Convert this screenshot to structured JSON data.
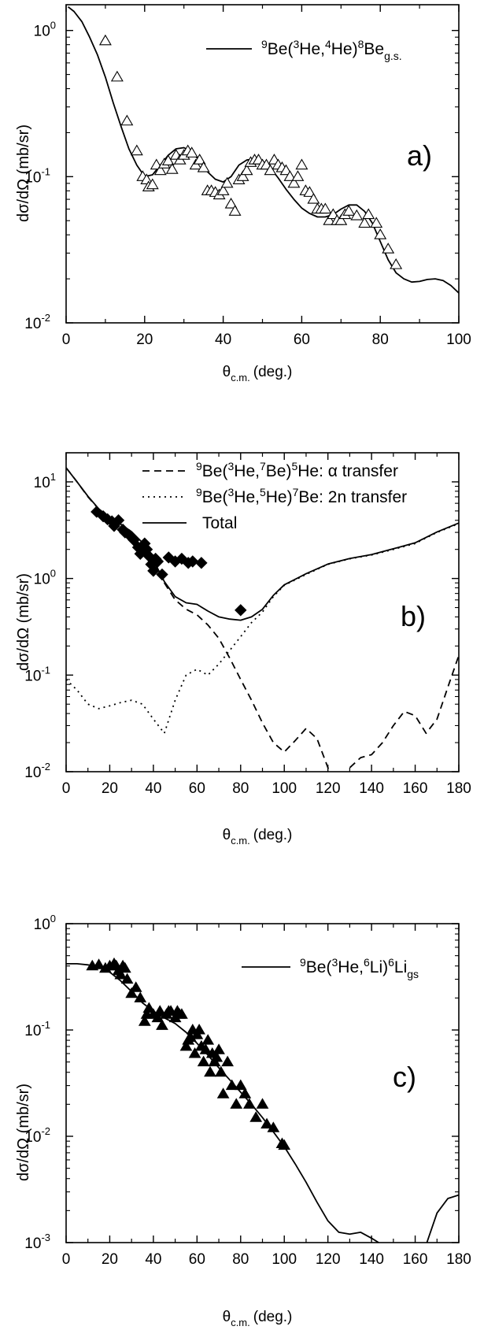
{
  "figure": {
    "ylabel_a": "dσ/dΩ (mb/sr)",
    "ylabel_b": "dσ/dΩ (mb/sr)",
    "ylabel_c": "dσ/dΩ (mb/sr)",
    "xlabel_theta": "θ",
    "xlabel_sub": "c.m.",
    "xlabel_unit": "(deg.)"
  },
  "chart_data": [
    {
      "panel": "a)",
      "type": "scatter",
      "xlim": [
        0,
        100
      ],
      "ylim": [
        0.01,
        1.5
      ],
      "yscale": "log",
      "xticks": [
        "0",
        "20",
        "40",
        "60",
        "80",
        "100"
      ],
      "yticks": [
        {
          "base": "10",
          "exp": "-2"
        },
        {
          "base": "10",
          "exp": "-1"
        },
        {
          "base": "10",
          "exp": "0"
        }
      ],
      "legend": [
        {
          "style": "solid",
          "label_parts": [
            "9",
            "Be(",
            "3",
            "He,",
            "4",
            "He)",
            "8",
            "Be",
            "g.s."
          ]
        }
      ],
      "series": [
        {
          "style": "solid",
          "x": [
            0.5,
            2,
            4,
            6,
            8,
            10,
            12,
            14,
            16,
            18,
            20,
            22,
            24,
            26,
            28,
            30,
            32,
            34,
            36,
            38,
            40,
            42,
            44,
            46,
            48,
            50,
            52,
            54,
            56,
            58,
            60,
            62,
            64,
            66,
            68,
            70,
            72,
            74,
            76,
            78,
            80,
            82,
            84,
            86,
            88,
            90,
            92,
            94,
            96,
            98,
            100
          ],
          "y": [
            1.45,
            1.35,
            1.15,
            0.9,
            0.68,
            0.48,
            0.32,
            0.22,
            0.155,
            0.12,
            0.1,
            0.103,
            0.12,
            0.14,
            0.155,
            0.158,
            0.148,
            0.128,
            0.108,
            0.096,
            0.092,
            0.1,
            0.12,
            0.13,
            0.132,
            0.128,
            0.115,
            0.098,
            0.082,
            0.07,
            0.061,
            0.056,
            0.053,
            0.053,
            0.055,
            0.06,
            0.064,
            0.064,
            0.058,
            0.048,
            0.036,
            0.027,
            0.022,
            0.02,
            0.019,
            0.0192,
            0.0198,
            0.02,
            0.0195,
            0.018,
            0.016
          ]
        },
        {
          "style": "open-triangle",
          "x": [
            10,
            13,
            15.5,
            18,
            19.5,
            20.5,
            21,
            22,
            23,
            24,
            25,
            26,
            27,
            28,
            29,
            30,
            31,
            32,
            33,
            34,
            35,
            36,
            37,
            38,
            39,
            40,
            41,
            42,
            43,
            44,
            45,
            46,
            47,
            48,
            49,
            50,
            51,
            52,
            53,
            54,
            55,
            56,
            57,
            58,
            59,
            60,
            61,
            62,
            63,
            64,
            65,
            66,
            67,
            68,
            69,
            70,
            71,
            72,
            74,
            76,
            77,
            79,
            80,
            82,
            84
          ],
          "y": [
            0.85,
            0.48,
            0.24,
            0.15,
            0.1,
            0.095,
            0.085,
            0.088,
            0.12,
            0.11,
            0.122,
            0.128,
            0.112,
            0.14,
            0.13,
            0.14,
            0.15,
            0.145,
            0.12,
            0.13,
            0.115,
            0.08,
            0.08,
            0.078,
            0.075,
            0.08,
            0.09,
            0.065,
            0.058,
            0.095,
            0.1,
            0.11,
            0.125,
            0.13,
            0.13,
            0.12,
            0.12,
            0.11,
            0.13,
            0.12,
            0.115,
            0.11,
            0.1,
            0.09,
            0.1,
            0.12,
            0.08,
            0.078,
            0.07,
            0.06,
            0.06,
            0.06,
            0.05,
            0.055,
            0.05,
            0.05,
            0.055,
            0.058,
            0.054,
            0.048,
            0.055,
            0.048,
            0.04,
            0.032,
            0.025
          ]
        }
      ]
    },
    {
      "panel": "b)",
      "type": "scatter",
      "xlim": [
        0,
        180
      ],
      "ylim": [
        0.01,
        20
      ],
      "yscale": "log",
      "xticks": [
        "0",
        "20",
        "40",
        "60",
        "80",
        "100",
        "120",
        "140",
        "160",
        "180"
      ],
      "yticks": [
        {
          "base": "10",
          "exp": "-2"
        },
        {
          "base": "10",
          "exp": "-1"
        },
        {
          "base": "10",
          "exp": "0"
        },
        {
          "base": "10",
          "exp": "1"
        }
      ],
      "legend": [
        {
          "style": "dashed",
          "label_parts": [
            "9",
            "Be(",
            "3",
            "He,",
            "7",
            "Be)",
            "5",
            "He: α transfer"
          ]
        },
        {
          "style": "dotted",
          "label_parts": [
            "9",
            "Be(",
            "3",
            "He,",
            "5",
            "He)",
            "7",
            "Be: 2n transfer"
          ]
        },
        {
          "style": "solid",
          "label": "Total"
        }
      ],
      "series": [
        {
          "style": "dashed",
          "x": [
            0,
            5,
            10,
            15,
            20,
            25,
            30,
            35,
            40,
            45,
            50,
            55,
            60,
            65,
            70,
            75,
            80,
            85,
            90,
            95,
            100,
            105,
            110,
            115,
            120,
            122,
            128,
            130,
            135,
            140,
            145,
            150,
            155,
            160,
            165,
            170,
            175,
            180
          ],
          "y": [
            14,
            10,
            7,
            5.2,
            4.2,
            3.6,
            3,
            2.3,
            1.5,
            0.9,
            0.6,
            0.48,
            0.42,
            0.33,
            0.24,
            0.15,
            0.09,
            0.055,
            0.032,
            0.02,
            0.016,
            0.021,
            0.028,
            0.022,
            0.011,
            0.008,
            0.008,
            0.011,
            0.014,
            0.015,
            0.02,
            0.03,
            0.042,
            0.038,
            0.025,
            0.035,
            0.075,
            0.16
          ]
        },
        {
          "style": "dotted",
          "x": [
            0,
            5,
            10,
            15,
            20,
            25,
            30,
            35,
            40,
            45,
            50,
            55,
            60,
            65,
            70,
            75,
            80,
            85,
            90,
            95,
            100,
            110,
            120,
            130,
            140,
            150,
            160,
            170,
            180
          ],
          "y": [
            0.09,
            0.07,
            0.05,
            0.045,
            0.048,
            0.052,
            0.055,
            0.05,
            0.035,
            0.025,
            0.055,
            0.1,
            0.115,
            0.1,
            0.13,
            0.18,
            0.25,
            0.35,
            0.45,
            0.65,
            0.85,
            1.1,
            1.4,
            1.6,
            1.75,
            2,
            2.3,
            3,
            3.7
          ]
        },
        {
          "style": "solid",
          "x": [
            0,
            5,
            10,
            15,
            20,
            25,
            30,
            35,
            40,
            45,
            50,
            55,
            60,
            65,
            70,
            75,
            80,
            85,
            90,
            95,
            100,
            110,
            120,
            130,
            140,
            150,
            160,
            170,
            180
          ],
          "y": [
            14,
            10,
            7.1,
            5.25,
            4.25,
            3.65,
            3.05,
            2.35,
            1.55,
            0.93,
            0.65,
            0.56,
            0.54,
            0.46,
            0.4,
            0.38,
            0.37,
            0.4,
            0.48,
            0.67,
            0.86,
            1.12,
            1.41,
            1.61,
            1.77,
            2.03,
            2.34,
            3.03,
            3.75
          ]
        },
        {
          "style": "filled-diamond",
          "x": [
            14,
            17,
            19,
            21,
            22,
            24,
            26,
            27,
            29,
            31,
            33,
            34,
            36,
            37,
            38,
            39,
            40,
            41,
            42,
            44,
            47,
            50,
            53,
            56,
            58,
            62,
            80
          ],
          "y": [
            4.9,
            4.4,
            4.1,
            3.9,
            3.5,
            4,
            3.2,
            3,
            2.8,
            2.5,
            2.1,
            1.8,
            2.3,
            2,
            1.7,
            1.4,
            1.2,
            1.6,
            1.5,
            1.1,
            1.65,
            1.5,
            1.6,
            1.45,
            1.5,
            1.45,
            0.47
          ]
        }
      ]
    },
    {
      "panel": "c)",
      "type": "scatter",
      "xlim": [
        0,
        180
      ],
      "ylim": [
        0.001,
        1
      ],
      "yscale": "log",
      "xticks": [
        "0",
        "20",
        "40",
        "60",
        "80",
        "100",
        "120",
        "140",
        "160",
        "180"
      ],
      "yticks": [
        {
          "base": "10",
          "exp": "-3"
        },
        {
          "base": "10",
          "exp": "-2"
        },
        {
          "base": "10",
          "exp": "-1"
        },
        {
          "base": "10",
          "exp": "0"
        }
      ],
      "legend": [
        {
          "style": "solid",
          "label_parts": [
            "9",
            "Be(",
            "3",
            "He,",
            "6",
            "Li)",
            "6",
            "Li",
            "gs"
          ]
        }
      ],
      "series": [
        {
          "style": "solid",
          "x": [
            0,
            5,
            10,
            15,
            20,
            25,
            30,
            35,
            40,
            45,
            50,
            55,
            60,
            65,
            70,
            75,
            80,
            85,
            90,
            95,
            100,
            105,
            110,
            115,
            120,
            125,
            130,
            135,
            140,
            145,
            165,
            170,
            175,
            180
          ],
          "y": [
            0.42,
            0.42,
            0.41,
            0.39,
            0.35,
            0.29,
            0.23,
            0.18,
            0.15,
            0.13,
            0.115,
            0.095,
            0.075,
            0.058,
            0.044,
            0.034,
            0.026,
            0.02,
            0.015,
            0.011,
            0.008,
            0.0055,
            0.0037,
            0.0024,
            0.0016,
            0.00125,
            0.0012,
            0.00125,
            0.0011,
            0.00095,
            0.00095,
            0.0019,
            0.0026,
            0.0028
          ]
        },
        {
          "style": "filled-triangle",
          "x": [
            12,
            15,
            18,
            20,
            22,
            23,
            24,
            25,
            26,
            27,
            28,
            30,
            32,
            34,
            36,
            37,
            38,
            40,
            42,
            43,
            44,
            46,
            47,
            48,
            50,
            51,
            52,
            53,
            55,
            56,
            57,
            58,
            59,
            60,
            61,
            62,
            63,
            64,
            65,
            66,
            67,
            68,
            69,
            70,
            71,
            72,
            74,
            76,
            78,
            80,
            82,
            84,
            87,
            90,
            92,
            95,
            99,
            100
          ],
          "y": [
            0.4,
            0.41,
            0.38,
            0.4,
            0.42,
            0.4,
            0.36,
            0.33,
            0.4,
            0.38,
            0.3,
            0.22,
            0.25,
            0.2,
            0.12,
            0.14,
            0.16,
            0.14,
            0.13,
            0.15,
            0.11,
            0.14,
            0.15,
            0.15,
            0.13,
            0.15,
            0.14,
            0.14,
            0.07,
            0.08,
            0.085,
            0.1,
            0.06,
            0.09,
            0.1,
            0.07,
            0.05,
            0.065,
            0.08,
            0.04,
            0.06,
            0.05,
            0.055,
            0.065,
            0.04,
            0.025,
            0.05,
            0.03,
            0.02,
            0.03,
            0.025,
            0.02,
            0.015,
            0.02,
            0.013,
            0.012,
            0.0085,
            0.0082
          ]
        }
      ]
    }
  ]
}
